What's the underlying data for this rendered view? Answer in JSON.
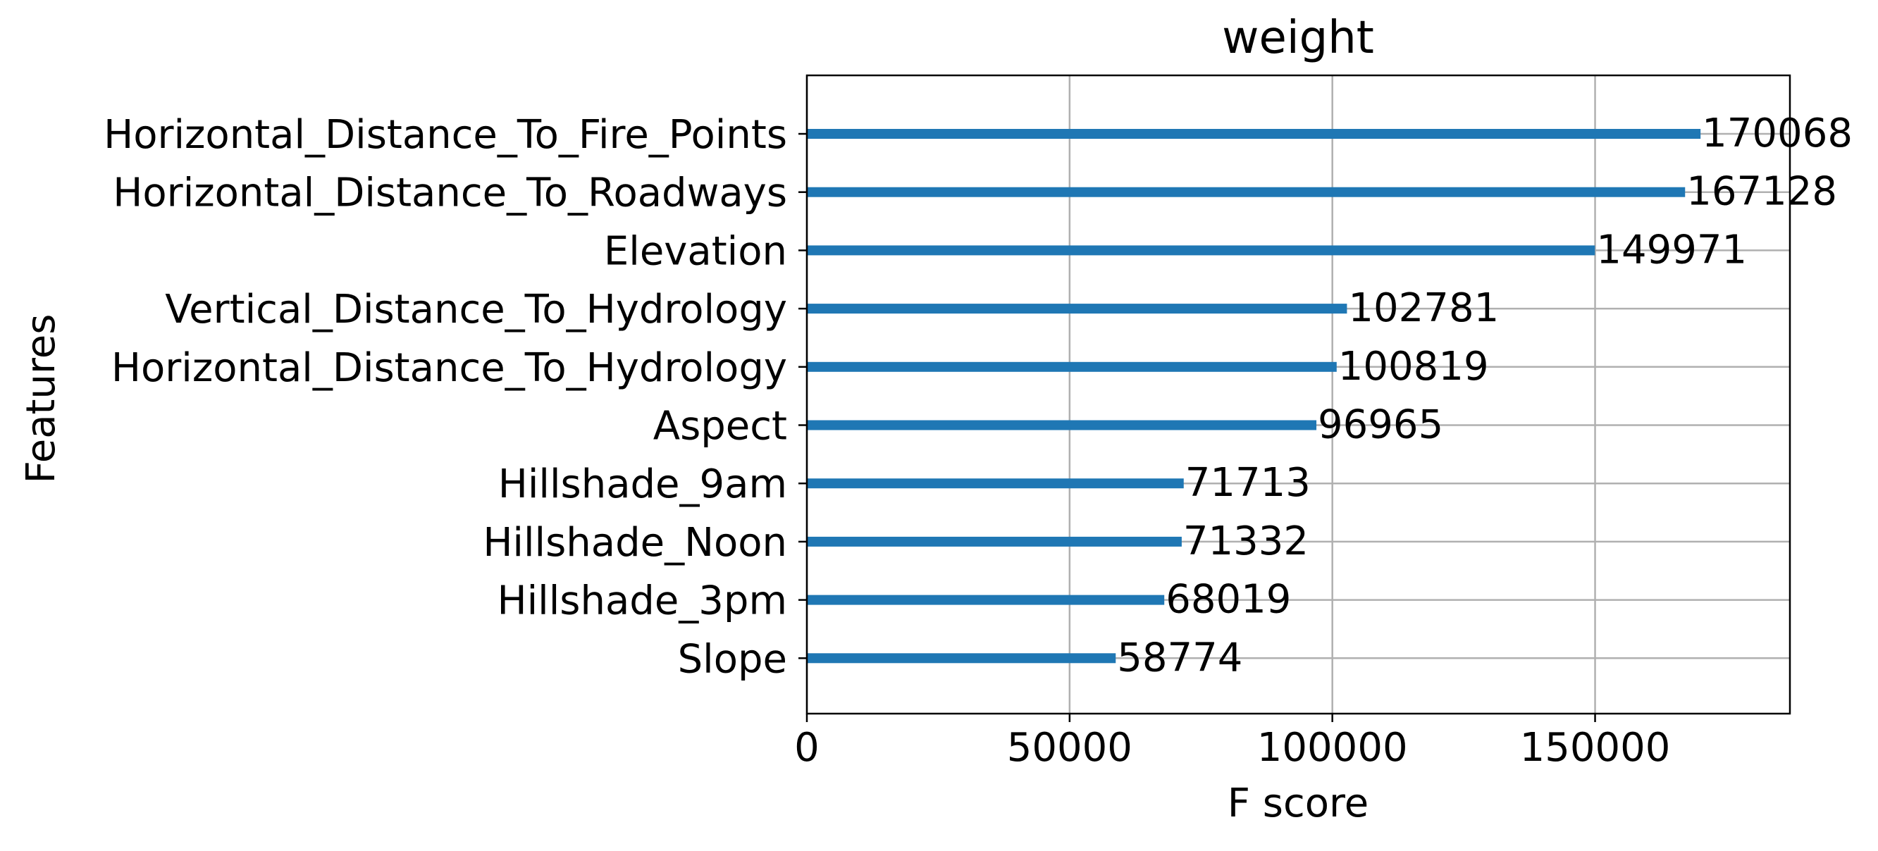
{
  "chart_data": {
    "type": "bar",
    "orientation": "horizontal",
    "title": "weight",
    "xlabel": "F score",
    "ylabel": "Features",
    "categories": [
      "Horizontal_Distance_To_Fire_Points",
      "Horizontal_Distance_To_Roadways",
      "Elevation",
      "Vertical_Distance_To_Hydrology",
      "Horizontal_Distance_To_Hydrology",
      "Aspect",
      "Hillshade_9am",
      "Hillshade_Noon",
      "Hillshade_3pm",
      "Slope"
    ],
    "values": [
      170068,
      167128,
      149971,
      102781,
      100819,
      96965,
      71713,
      71332,
      68019,
      58774
    ],
    "data_labels": [
      "170068",
      "167128",
      "149971",
      "102781",
      "100819",
      "96965",
      "71713",
      "71332",
      "68019",
      "58774"
    ],
    "xlim": [
      0,
      187075
    ],
    "xticks": [
      0,
      50000,
      100000,
      150000
    ],
    "xtick_labels": [
      "0",
      "50000",
      "100000",
      "150000"
    ],
    "grid": true,
    "bar_color": "#1f77b4"
  }
}
